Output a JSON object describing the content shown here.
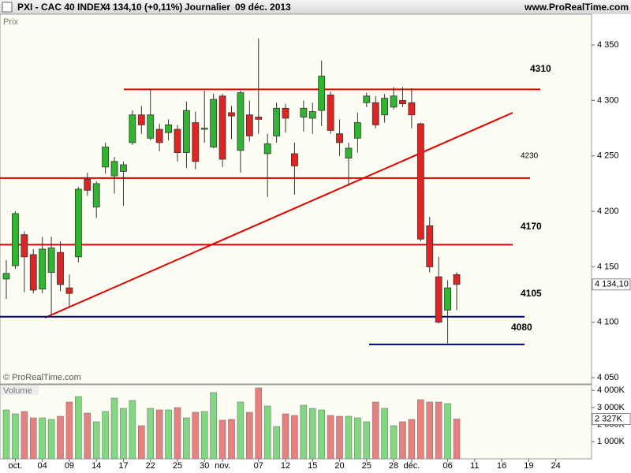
{
  "header": {
    "symbol": "PXI - CAC 40 INDEX",
    "quote": "4 134,10 (+0,11%)",
    "period": "Journalier",
    "date": "09 déc. 2013",
    "site": "www.ProRealTime.com"
  },
  "chart_data": [
    {
      "type": "candlestick",
      "title": "Prix",
      "copyright": "© ProRealTime.com",
      "categories": [
        null,
        "oct.",
        null,
        null,
        "04",
        null,
        null,
        "09",
        null,
        null,
        "14",
        null,
        null,
        "17",
        null,
        null,
        "22",
        null,
        null,
        "25",
        null,
        null,
        "30",
        null,
        "nov.",
        null,
        null,
        null,
        "07",
        null,
        null,
        "12",
        null,
        null,
        "15",
        null,
        null,
        "20",
        null,
        null,
        "25",
        null,
        null,
        "28",
        null,
        "déc.",
        null,
        null,
        null,
        "06",
        null,
        null,
        "11",
        null,
        null,
        "16",
        null,
        null,
        "19",
        null,
        null,
        "24"
      ],
      "open": [
        4139,
        4151,
        4179,
        4161,
        4130,
        4145,
        4163,
        4131,
        4159,
        4229,
        4204,
        4240,
        4232,
        4236,
        4262,
        4287,
        4266,
        4274,
        4271,
        4274,
        4253,
        4280,
        4274,
        4258,
        4304,
        4289,
        4255,
        4287,
        4285,
        4252,
        4268,
        4293,
        4252,
        4285,
        4284,
        4291,
        4305,
        4270,
        4248,
        4266,
        4298,
        4298,
        4287,
        4294,
        4300,
        4298,
        4279,
        4187,
        4141,
        4111,
        4143,
        null,
        null,
        null,
        null,
        null,
        null,
        null,
        null,
        null,
        null,
        null
      ],
      "high": [
        4156,
        4200,
        4182,
        4166,
        4177,
        4177,
        4173,
        4143,
        4222,
        4235,
        4227,
        4262,
        4249,
        4245,
        4291,
        4295,
        4310,
        4279,
        4283,
        4278,
        4299,
        4290,
        4309,
        4306,
        4306,
        4295,
        4309,
        4300,
        4356,
        4270,
        4298,
        4297,
        4262,
        4300,
        4298,
        4336,
        4308,
        4283,
        4262,
        4289,
        4307,
        4304,
        4306,
        4312,
        4312,
        4311,
        4280,
        4195,
        4159,
        4138,
        4145,
        null,
        null,
        null,
        null,
        null,
        null,
        null,
        null,
        null,
        null,
        null
      ],
      "low": [
        4121,
        4148,
        4127,
        4126,
        4126,
        4107,
        4128,
        4113,
        4154,
        4214,
        4194,
        4234,
        4216,
        4205,
        4260,
        4270,
        4264,
        4254,
        4264,
        4245,
        4239,
        4238,
        4262,
        4257,
        4240,
        4265,
        4235,
        4263,
        4270,
        4213,
        4262,
        4271,
        4215,
        4272,
        4270,
        4277,
        4270,
        4250,
        4223,
        4253,
        4294,
        4275,
        4280,
        4292,
        4294,
        4275,
        4173,
        4145,
        4099,
        4081,
        4111,
        null,
        null,
        null,
        null,
        null,
        null,
        null,
        null,
        null,
        null,
        null
      ],
      "close": [
        4144,
        4198,
        4159,
        4129,
        4166,
        4167,
        4134,
        4126,
        4220,
        4219,
        4225,
        4258,
        4245,
        4242,
        4287,
        4278,
        4287,
        4262,
        4278,
        4253,
        4291,
        4245,
        4275,
        4301,
        4247,
        4286,
        4307,
        4268,
        4283,
        4261,
        4293,
        4284,
        4241,
        4293,
        4290,
        4322,
        4273,
        4262,
        4257,
        4280,
        4304,
        4278,
        4302,
        4304,
        4297,
        4287,
        4175,
        4150,
        4100,
        4131,
        4134.1,
        null,
        null,
        null,
        null,
        null,
        null,
        null,
        null,
        null,
        null,
        null
      ],
      "last_close_label": "4 134,10",
      "up_color": "#2fb52f",
      "down_color": "#e02424",
      "ylim": [
        4044.4,
        4377.8
      ],
      "yticks": [
        {
          "value": 4050,
          "label": "4 050"
        },
        {
          "value": 4100,
          "label": "4 100"
        },
        {
          "value": 4150,
          "label": "4 150"
        },
        {
          "value": 4200,
          "label": "4 200"
        },
        {
          "value": 4250,
          "label": "4 250"
        },
        {
          "value": 4300,
          "label": "4 300"
        },
        {
          "value": 4350,
          "label": "4 350"
        }
      ],
      "levels": [
        {
          "value": 4310,
          "color": "#e00000"
        },
        {
          "value": 4230,
          "color": "#e00000"
        },
        {
          "value": 4170,
          "color": "#e00000"
        },
        {
          "value": 4105,
          "color": "#000080"
        },
        {
          "value": 4080,
          "color": "#000080"
        }
      ]
    },
    {
      "type": "bar",
      "title": "Volume",
      "values": [
        2857,
        2627,
        2765,
        2396,
        2396,
        2304,
        2488,
        3318,
        3641,
        2673,
        2166,
        2765,
        3548,
        2949,
        3410,
        1935,
        2949,
        2857,
        2857,
        2995,
        2396,
        2719,
        2765,
        3871,
        2258,
        2304,
        3318,
        2719,
        4147,
        3088,
        1889,
        2627,
        2535,
        3134,
        2949,
        2857,
        2535,
        2488,
        2488,
        2396,
        2166,
        3318,
        2949,
        1935,
        2166,
        2304,
        3456,
        3318,
        3318,
        3226,
        2327,
        null,
        null,
        null,
        null,
        null,
        null,
        null,
        null,
        null,
        null,
        null
      ],
      "last_value_label": "2 327K",
      "up_color": "#80d880",
      "down_color": "#e88080",
      "ylim": [
        0,
        4332
      ],
      "yticks": [
        {
          "value": 1000,
          "label": "1 000K"
        },
        {
          "value": 2000,
          "label": "2 000K"
        },
        {
          "value": 3000,
          "label": "3 000K"
        },
        {
          "value": 4000,
          "label": "4 000K"
        }
      ]
    }
  ]
}
